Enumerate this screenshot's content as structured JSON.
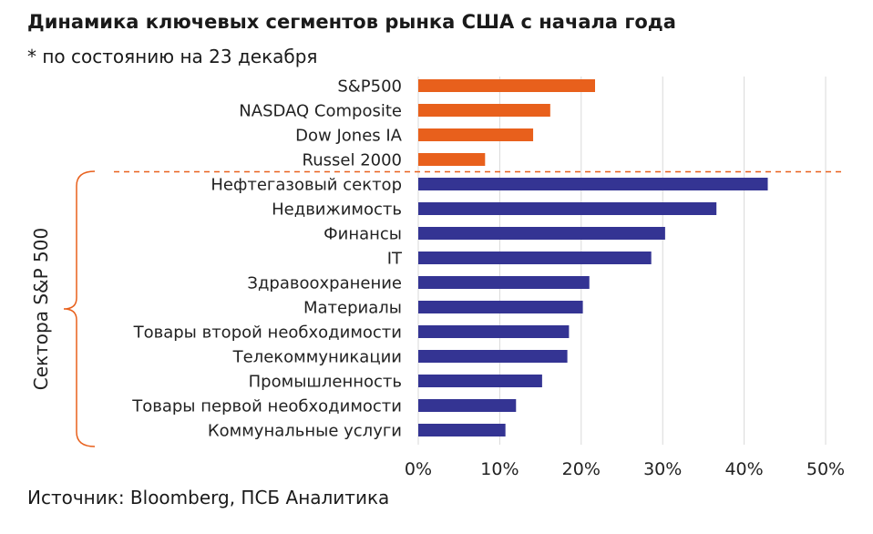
{
  "title": "Динамика ключевых сегментов рынка США с начала года",
  "subtitle": "* по состоянию на 23 декабря",
  "source": "Источник: Bloomberg, ПСБ Аналитика",
  "colors": {
    "index": "#e8601c",
    "sector": "#343493",
    "grid": "#d9d9d9",
    "divider": "#e8601c",
    "bracket": "#e8601c"
  },
  "chart_data": {
    "type": "bar",
    "orientation": "horizontal",
    "categories": [
      "S&P500",
      "NASDAQ Composite",
      "Dow Jones IA",
      "Russel 2000",
      "Нефтегазовый сектор",
      "Недвижимость",
      "Финансы",
      "IT",
      "Здравоохранение",
      "Материалы",
      "Товары второй необходимости",
      "Телекоммуникации",
      "Промышленность",
      "Товары первой необходимости",
      "Коммунальные услуги"
    ],
    "values": [
      21.7,
      16.2,
      14.1,
      8.2,
      42.9,
      36.6,
      30.3,
      28.6,
      21.0,
      20.2,
      18.5,
      18.3,
      15.2,
      12.0,
      10.7
    ],
    "groups": [
      "index",
      "index",
      "index",
      "index",
      "sector",
      "sector",
      "sector",
      "sector",
      "sector",
      "sector",
      "sector",
      "sector",
      "sector",
      "sector",
      "sector"
    ],
    "xlim": [
      0,
      50
    ],
    "xticks": [
      "0%",
      "10%",
      "20%",
      "30%",
      "40%",
      "50%"
    ],
    "xtick_values": [
      0,
      10,
      20,
      30,
      40,
      50
    ],
    "group_label": "Сектора S&P 500",
    "grid": true
  }
}
